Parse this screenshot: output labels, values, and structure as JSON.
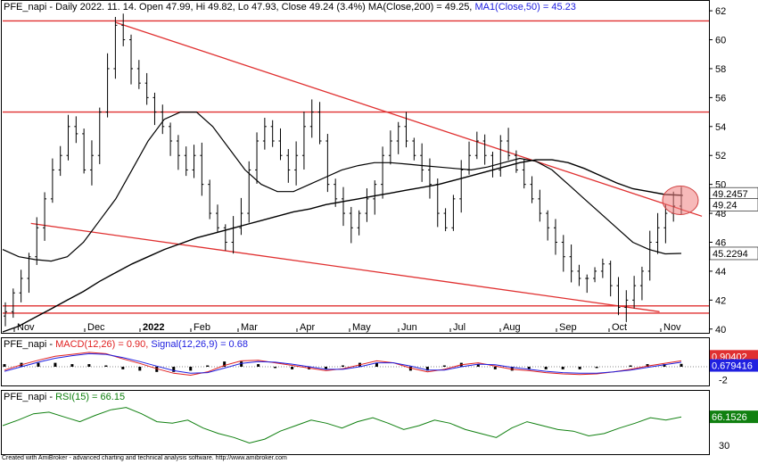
{
  "price_header": {
    "prefix": "PFE_napi - Daily 2022. 11. 14. Open 47.99, Hi 49.82, Lo 47.93, Close 49.24 (3.4%) ",
    "ma200": "MA(Close,200) = 49.25, ",
    "ma50": "MA1(Close,50) = 45.23"
  },
  "macd_header": {
    "prefix": "PFE_napi - ",
    "macd": "MACD(12,26) = 0.90, ",
    "signal": "Signal(12,26,9) = 0.68"
  },
  "rsi_header": {
    "prefix": "PFE_napi - ",
    "rsi": "RSI(15) = 66.15"
  },
  "footer": "Created with AmiBroker - advanced charting and technical analysis software. http://www.amibroker.com",
  "colors": {
    "price": "#000000",
    "trendline": "#e03030",
    "ma": "#000000",
    "macd": "#e02020",
    "signal": "#2020e0",
    "rsi": "#108010",
    "ma200_tag_bg": "#ffffff",
    "close_tag_bg": "#ffffff",
    "ma50_tag_bg": "#ffffff",
    "macd_tag_bg": "#e03030",
    "signal_tag_bg": "#2020e0",
    "rsi_tag_bg": "#108010"
  },
  "chart_data": [
    {
      "type": "candlestick",
      "title": "PFE_napi - Daily 2022. 11. 14.",
      "x_ticks": [
        "Nov",
        "Dec",
        "2022",
        "Feb",
        "Mar",
        "Apr",
        "May",
        "Jun",
        "Jul",
        "Aug",
        "Sep",
        "Oct",
        "Nov"
      ],
      "ylim": [
        40,
        62.5
      ],
      "y_ticks": [
        40,
        42,
        44,
        46,
        48,
        50,
        52,
        54,
        56,
        58,
        60,
        62
      ],
      "value_tags": {
        "ma200": "49.2457",
        "close": "49.24",
        "ma50": "45.2294"
      },
      "last_bar": {
        "open": 47.99,
        "high": 49.82,
        "low": 47.93,
        "close": 49.24
      },
      "close_path": [
        41.2,
        42.5,
        43.5,
        45,
        47,
        49,
        51,
        52,
        54,
        53.5,
        51,
        52,
        55,
        58,
        61,
        60,
        58,
        57,
        56,
        55,
        54,
        53,
        52,
        51,
        52,
        50,
        48,
        47,
        46,
        47,
        48,
        51,
        53,
        54,
        53,
        52,
        51,
        52,
        54,
        55,
        53,
        50,
        49,
        48,
        47,
        48,
        49,
        50,
        52,
        53,
        54,
        53,
        52,
        51,
        50,
        48,
        47,
        49,
        51,
        52,
        53,
        52,
        51,
        53,
        52,
        51,
        50,
        49,
        48,
        47,
        46,
        45,
        44,
        43.5,
        43.5,
        44,
        44.5,
        43,
        41.5,
        42,
        43,
        44,
        46,
        47,
        48,
        48.5,
        49.24
      ],
      "ma200": [
        39.8,
        40.2,
        40.8,
        41.4,
        42.0,
        42.6,
        43.3,
        43.9,
        44.5,
        45.0,
        45.5,
        45.9,
        46.3,
        46.6,
        46.9,
        47.2,
        47.5,
        47.8,
        48.1,
        48.3,
        48.6,
        48.8,
        49.0,
        49.2,
        49.4,
        49.6,
        49.8,
        50.0,
        50.3,
        50.6,
        50.9,
        51.2,
        51.5,
        51.7,
        51.7,
        51.5,
        51.1,
        50.6,
        50.1,
        49.7,
        49.5,
        49.3,
        49.25
      ],
      "ma50": [
        45.5,
        45,
        44.8,
        44.7,
        45,
        46,
        47.5,
        49,
        51,
        53,
        54.5,
        55,
        55,
        54,
        52.5,
        51,
        50,
        49.5,
        49.5,
        50,
        50.5,
        51,
        51.3,
        51.5,
        51.5,
        51.4,
        51.3,
        51.2,
        51.1,
        51,
        51.2,
        51.5,
        51.8,
        51.6,
        51,
        50,
        49,
        48,
        47,
        46,
        45.5,
        45.2,
        45.23
      ],
      "trendlines": [
        {
          "points": [
            [
              0.16,
              61.2
            ],
            [
              0.99,
              47.8
            ]
          ]
        },
        {
          "points": [
            [
              0.04,
              47.3
            ],
            [
              0.93,
              41.2
            ]
          ]
        },
        {
          "points": [
            [
              0.0,
              61.3
            ],
            [
              1.0,
              61.3
            ]
          ]
        },
        {
          "points": [
            [
              0.0,
              55.0
            ],
            [
              1.0,
              55.0
            ]
          ]
        },
        {
          "points": [
            [
              0.0,
              41.6
            ],
            [
              1.0,
              41.6
            ]
          ]
        },
        {
          "points": [
            [
              0.0,
              41.1
            ],
            [
              1.0,
              41.1
            ]
          ]
        }
      ]
    },
    {
      "type": "line",
      "title": "MACD(12,26)",
      "y_ticks": [
        "2",
        "-2"
      ],
      "value_tags": {
        "macd": "0.90402",
        "signal": "0.679416"
      },
      "macd": [
        -0.5,
        0.3,
        1.0,
        1.6,
        1.9,
        2.2,
        2.0,
        1.2,
        0.5,
        -0.3,
        -1.0,
        -1.3,
        -0.8,
        0.2,
        0.9,
        1.0,
        0.6,
        0.2,
        -0.2,
        -0.6,
        -0.3,
        0.3,
        0.9,
        0.6,
        -0.2,
        -0.8,
        -0.4,
        0.3,
        0.6,
        0.1,
        -0.4,
        -0.6,
        -0.9,
        -1.1,
        -1.2,
        -1.1,
        -0.8,
        -0.4,
        0.1,
        0.5,
        0.9
      ],
      "signal": [
        -0.7,
        0.0,
        0.7,
        1.3,
        1.7,
        2.0,
        1.9,
        1.4,
        0.8,
        0.1,
        -0.6,
        -1.0,
        -0.9,
        -0.2,
        0.5,
        0.8,
        0.7,
        0.4,
        0.0,
        -0.4,
        -0.4,
        0.0,
        0.6,
        0.6,
        0.1,
        -0.5,
        -0.5,
        0.0,
        0.4,
        0.3,
        -0.1,
        -0.4,
        -0.7,
        -0.9,
        -1.0,
        -1.0,
        -0.8,
        -0.5,
        -0.1,
        0.3,
        0.68
      ]
    },
    {
      "type": "line",
      "title": "RSI(15)",
      "y_ticks": [
        "30"
      ],
      "ylim": [
        20,
        90
      ],
      "value_tags": {
        "rsi": "66.1526"
      },
      "rsi": [
        55,
        62,
        70,
        72,
        66,
        60,
        68,
        75,
        78,
        70,
        60,
        58,
        62,
        52,
        45,
        40,
        33,
        38,
        48,
        55,
        62,
        58,
        52,
        60,
        65,
        58,
        50,
        55,
        62,
        58,
        50,
        45,
        40,
        52,
        60,
        55,
        50,
        48,
        42,
        45,
        52,
        58,
        65,
        62,
        66
      ]
    }
  ]
}
